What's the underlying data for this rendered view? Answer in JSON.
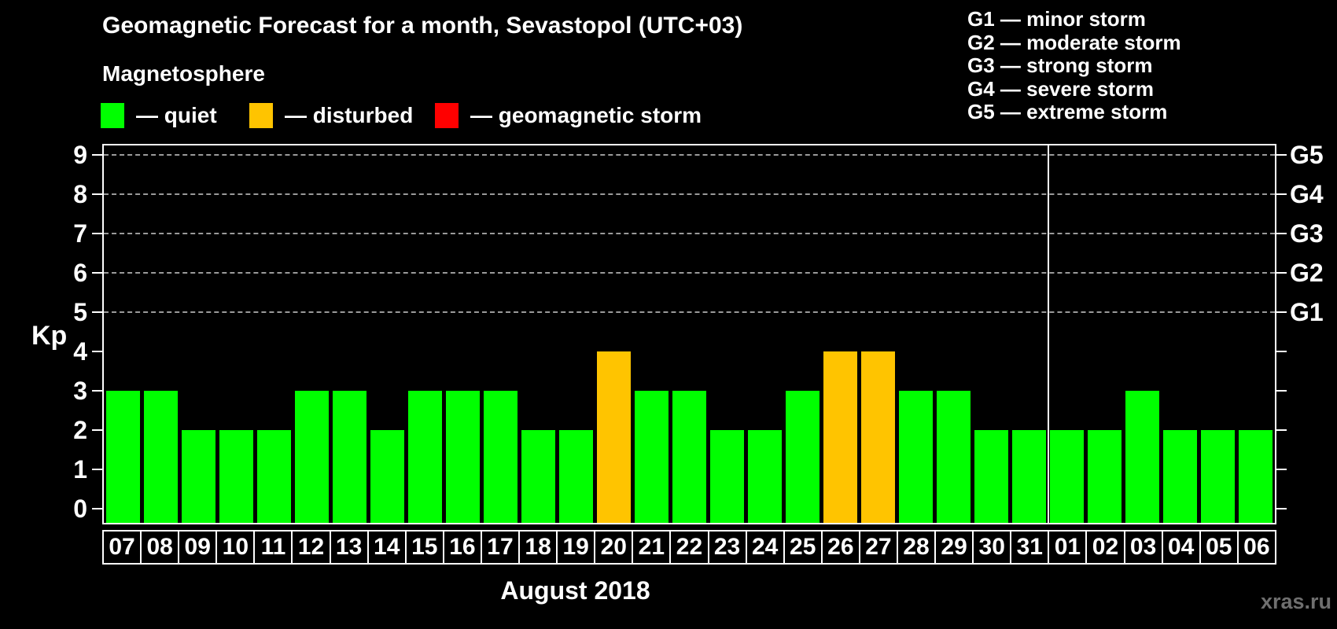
{
  "title": "Geomagnetic Forecast for a month, Sevastopol (UTC+03)",
  "subtitle": "Magnetosphere",
  "activity_legend": [
    {
      "status": "quiet",
      "label": "— quiet",
      "color": "#00ff00"
    },
    {
      "status": "disturbed",
      "label": "— disturbed",
      "color": "#ffc400"
    },
    {
      "status": "storm",
      "label": "— geomagnetic storm",
      "color": "#ff0000"
    }
  ],
  "storm_scale_legend": [
    "G1 — minor storm",
    "G2 — moderate storm",
    "G3 — strong storm",
    "G4 — severe storm",
    "G5 — extreme storm"
  ],
  "watermark": "xras.ru",
  "chart_data": {
    "type": "bar",
    "title": "Geomagnetic Forecast for a month, Sevastopol (UTC+03)",
    "xlabel": "August 2018",
    "ylabel": "Kp",
    "ylim": [
      0,
      9.3
    ],
    "yticks": [
      0,
      1,
      2,
      3,
      4,
      5,
      6,
      7,
      8,
      9
    ],
    "grid": "dashed horizontal lines at Kp 5 through 9",
    "gridline_levels": [
      5,
      6,
      7,
      8,
      9
    ],
    "right_axis": [
      {
        "label": "G5",
        "kp": 9
      },
      {
        "label": "G4",
        "kp": 8
      },
      {
        "label": "G3",
        "kp": 7
      },
      {
        "label": "G2",
        "kp": 6
      },
      {
        "label": "G1",
        "kp": 5
      }
    ],
    "categories": [
      "07",
      "08",
      "09",
      "10",
      "11",
      "12",
      "13",
      "14",
      "15",
      "16",
      "17",
      "18",
      "19",
      "20",
      "21",
      "22",
      "23",
      "24",
      "25",
      "26",
      "27",
      "28",
      "29",
      "30",
      "31",
      "01",
      "02",
      "03",
      "04",
      "05",
      "06"
    ],
    "values": [
      3,
      3,
      2,
      2,
      2,
      3,
      3,
      2,
      3,
      3,
      3,
      2,
      2,
      4,
      3,
      3,
      2,
      2,
      3,
      4,
      4,
      3,
      3,
      2,
      2,
      2,
      2,
      3,
      2,
      2,
      2
    ],
    "statuses": [
      "quiet",
      "quiet",
      "quiet",
      "quiet",
      "quiet",
      "quiet",
      "quiet",
      "quiet",
      "quiet",
      "quiet",
      "quiet",
      "quiet",
      "quiet",
      "disturbed",
      "quiet",
      "quiet",
      "quiet",
      "quiet",
      "quiet",
      "disturbed",
      "disturbed",
      "quiet",
      "quiet",
      "quiet",
      "quiet",
      "quiet",
      "quiet",
      "quiet",
      "quiet",
      "quiet",
      "quiet"
    ],
    "status_colors": {
      "quiet": "#00ff00",
      "disturbed": "#ffc400",
      "storm": "#ff0000"
    },
    "month_separator_after_index": 24
  },
  "colors": {
    "background": "#000000",
    "text": "#ffffff",
    "axis": "#ffffff",
    "gridline": "#9a9a9a",
    "watermark": "#6f6f6f"
  }
}
